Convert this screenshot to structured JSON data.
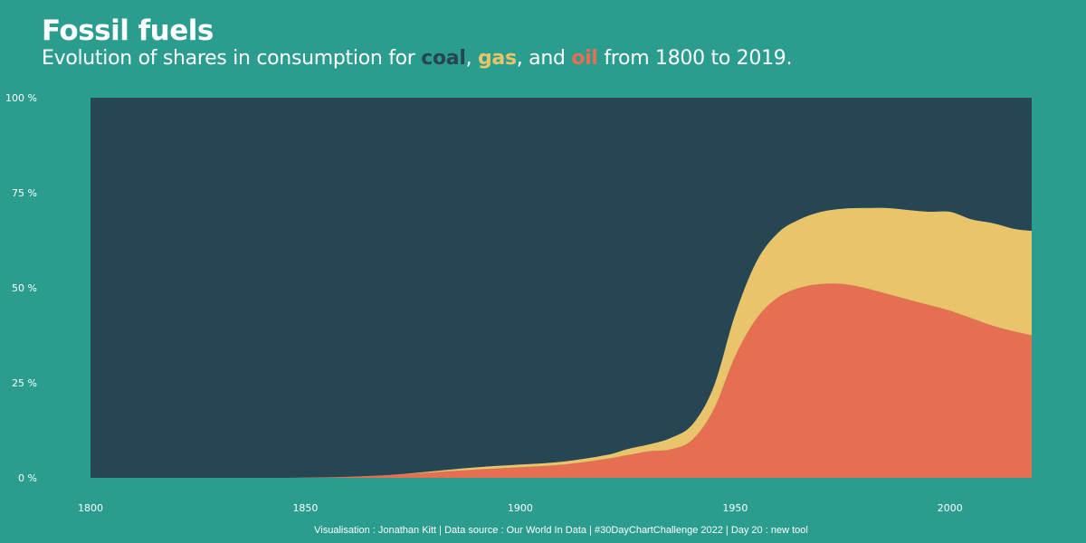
{
  "header": {
    "title": "Fossil fuels",
    "subtitle_prefix": "Evolution of shares in consumption for ",
    "coal": "coal",
    "sep1": ", ",
    "gas": "gas",
    "sep2": ", and ",
    "oil": "oil",
    "subtitle_suffix": " from 1800 to 2019."
  },
  "caption": "Visualisation : Jonathan Kitt | Data source : Our World In Data | #30DayChartChallenge 2022 | Day 20 : new tool",
  "colors": {
    "background": "#2a9d8f",
    "coal": "#264653",
    "gas": "#e9c46a",
    "oil": "#e76f51"
  },
  "chart_data": {
    "type": "area",
    "stacked": true,
    "normalized": true,
    "xlim": [
      1800,
      2019
    ],
    "ylim": [
      0,
      100
    ],
    "x_ticks": [
      "1800",
      "1850",
      "1900",
      "1950",
      "2000"
    ],
    "y_ticks": [
      "0 %",
      "25 %",
      "50 %",
      "75 %",
      "100 %"
    ],
    "x": [
      1800,
      1840,
      1850,
      1860,
      1870,
      1880,
      1890,
      1900,
      1910,
      1920,
      1925,
      1930,
      1935,
      1940,
      1945,
      1950,
      1955,
      1960,
      1965,
      1970,
      1975,
      1980,
      1985,
      1990,
      1995,
      2000,
      2005,
      2010,
      2015,
      2019
    ],
    "series": [
      {
        "name": "oil",
        "values": [
          0,
          0,
          0.1,
          0.3,
          0.8,
          1.5,
          2.2,
          2.8,
          3.5,
          5.0,
          6.0,
          7.0,
          7.5,
          10.0,
          18.0,
          32.0,
          42.0,
          47.5,
          50.0,
          51.0,
          51.0,
          50.0,
          48.5,
          47.0,
          45.5,
          44.0,
          42.0,
          40.0,
          38.5,
          37.5
        ]
      },
      {
        "name": "gas",
        "values": [
          0,
          0,
          0,
          0,
          0,
          0.3,
          0.6,
          0.7,
          0.8,
          1.0,
          1.6,
          1.8,
          3.0,
          4.0,
          6.0,
          11.0,
          15.0,
          17.0,
          18.0,
          19.0,
          19.8,
          21.0,
          22.5,
          23.5,
          24.5,
          26.0,
          26.0,
          27.0,
          27.0,
          27.5
        ]
      },
      {
        "name": "coal",
        "values": [
          100,
          100,
          99.9,
          99.7,
          99.2,
          98.2,
          97.2,
          96.5,
          95.7,
          94.0,
          92.4,
          91.2,
          89.5,
          86.0,
          76.0,
          57.0,
          43.0,
          35.5,
          32.0,
          30.0,
          29.2,
          29.0,
          29.0,
          29.5,
          30.0,
          30.0,
          32.0,
          33.0,
          34.5,
          35.0
        ]
      }
    ]
  }
}
